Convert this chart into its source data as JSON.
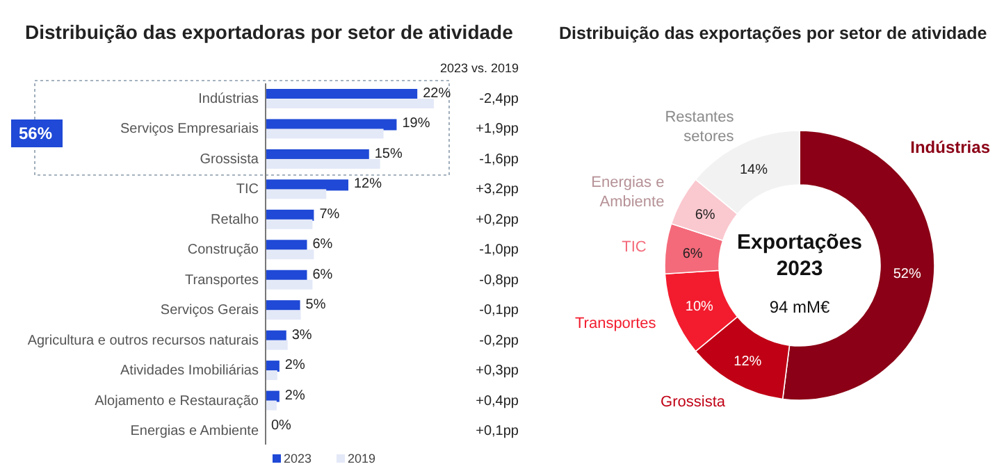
{
  "chart_data": [
    {
      "type": "bar",
      "orientation": "horizontal",
      "title": "Distribuição das exportadoras por setor de atividade",
      "categories": [
        "Indústrias",
        "Serviços Empresariais",
        "Grossista",
        "TIC",
        "Retalho",
        "Construção",
        "Transportes",
        "Serviços Gerais",
        "Agricultura e outros recursos naturais",
        "Atividades Imobiliárias",
        "Alojamento e Restauração",
        "Energias e Ambiente"
      ],
      "series": [
        {
          "name": "2023",
          "color": "#1f49d6",
          "values": [
            22,
            19,
            15,
            12,
            7,
            6,
            6,
            5,
            3,
            2,
            2,
            0
          ],
          "value_labels": [
            "22%",
            "19%",
            "15%",
            "12%",
            "7%",
            "6%",
            "6%",
            "5%",
            "3%",
            "2%",
            "2%",
            "0%"
          ]
        },
        {
          "name": "2019",
          "color": "#e4e9f8",
          "values": [
            24.4,
            17.1,
            16.6,
            8.8,
            6.8,
            7,
            6.8,
            5.1,
            3.2,
            1.7,
            1.6,
            0
          ]
        }
      ],
      "legend": "bottom",
      "annotations": [
        "2023 vs. 2019",
        "56%",
        "-2,4pp",
        "+1,9pp",
        "-1,6pp",
        "+3,2pp",
        "+0,2pp",
        "-1,0pp",
        "-0,8pp",
        "-0,1pp",
        "-0,2pp",
        "+0,3pp",
        "+0,4pp",
        "+0,1pp"
      ]
    },
    {
      "type": "donut",
      "title": "Distribuição das exportações por setor de atividade",
      "categories": [
        "Indústrias",
        "Grossista",
        "Transportes",
        "TIC",
        "Energias e Ambiente",
        "Restantes setores"
      ],
      "values": [
        52,
        12,
        10,
        6,
        6,
        14
      ],
      "colors": [
        "#8b0016",
        "#c00015",
        "#f21c2e",
        "#f46a7a",
        "#fac8cf",
        "#f2f2f2"
      ],
      "value_labels": [
        "52%",
        "12%",
        "10%",
        "6%",
        "6%",
        "14%"
      ],
      "annotations": [
        "Exportações",
        "2023",
        "94 mM€"
      ]
    }
  ]
}
